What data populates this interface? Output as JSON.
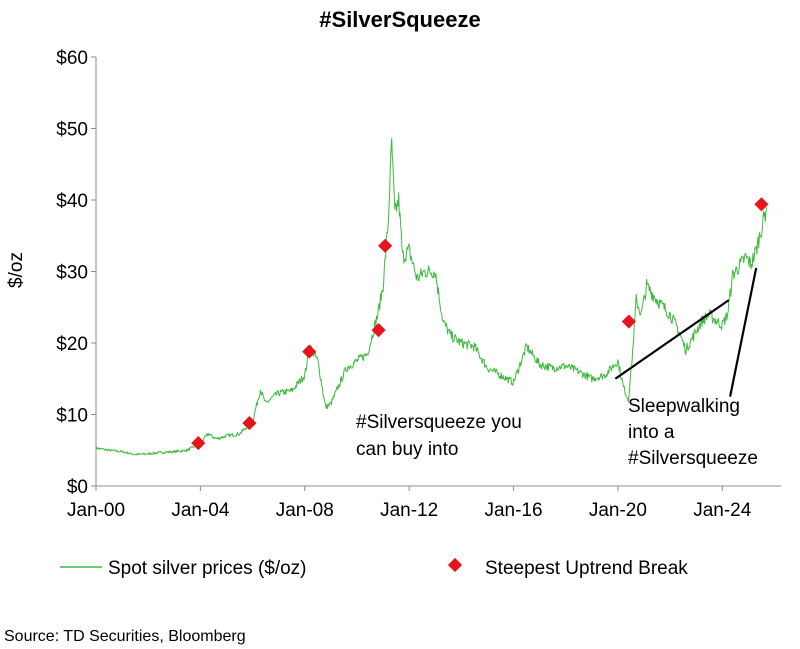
{
  "chart_data": {
    "type": "line",
    "title": "#SilverSqueeze",
    "ylabel": "$/oz",
    "xlabel": "",
    "source": "Source: TD Securities, Bloomberg",
    "ylim": [
      0,
      60
    ],
    "yticks": [
      0,
      10,
      20,
      30,
      40,
      50,
      60
    ],
    "ytick_labels": [
      "$0",
      "$10",
      "$20",
      "$30",
      "$40",
      "$50",
      "$60"
    ],
    "xlim": [
      2000.0,
      2026.25
    ],
    "xticks": [
      2000,
      2004,
      2008,
      2012,
      2016,
      2020,
      2024
    ],
    "xtick_labels": [
      "Jan-00",
      "Jan-04",
      "Jan-08",
      "Jan-12",
      "Jan-16",
      "Jan-20",
      "Jan-24"
    ],
    "grid": false,
    "legend_position": "bottom",
    "series": [
      {
        "name": "Spot silver prices ($/oz)",
        "color": "#3dba3d",
        "x": [
          2000.0,
          2000.5,
          2001.0,
          2001.5,
          2002.0,
          2002.5,
          2003.0,
          2003.5,
          2004.0,
          2004.3,
          2004.6,
          2005.0,
          2005.5,
          2006.0,
          2006.3,
          2006.5,
          2006.8,
          2007.0,
          2007.5,
          2008.0,
          2008.2,
          2008.5,
          2008.8,
          2009.0,
          2009.3,
          2009.6,
          2010.0,
          2010.4,
          2010.8,
          2011.0,
          2011.2,
          2011.33,
          2011.45,
          2011.6,
          2011.75,
          2012.0,
          2012.3,
          2012.6,
          2013.0,
          2013.3,
          2013.6,
          2014.0,
          2014.5,
          2015.0,
          2015.5,
          2016.0,
          2016.5,
          2017.0,
          2017.5,
          2018.0,
          2018.5,
          2019.0,
          2019.5,
          2020.0,
          2020.2,
          2020.4,
          2020.55,
          2020.7,
          2020.9,
          2021.1,
          2021.5,
          2022.0,
          2022.3,
          2022.6,
          2022.9,
          2023.2,
          2023.5,
          2023.8,
          2024.0,
          2024.2,
          2024.4,
          2024.6,
          2024.9,
          2025.1,
          2025.3,
          2025.5,
          2025.7
        ],
        "values": [
          5.3,
          5.0,
          4.8,
          4.4,
          4.5,
          4.7,
          4.8,
          5.0,
          6.0,
          7.3,
          6.6,
          7.0,
          7.3,
          9.0,
          13.5,
          11.5,
          12.5,
          13.0,
          13.3,
          15.5,
          19.5,
          17.5,
          11.0,
          11.5,
          14.0,
          16.5,
          17.5,
          18.5,
          24.0,
          28.0,
          37.0,
          48.0,
          38.0,
          40.0,
          32.0,
          33.0,
          29.0,
          30.0,
          30.0,
          23.0,
          21.0,
          20.0,
          19.5,
          16.5,
          15.5,
          14.5,
          19.5,
          17.0,
          16.5,
          16.8,
          16.0,
          15.0,
          15.5,
          17.5,
          14.0,
          12.0,
          18.0,
          26.0,
          24.0,
          28.0,
          26.0,
          24.0,
          22.0,
          19.0,
          21.0,
          23.0,
          24.0,
          23.0,
          22.5,
          24.0,
          29.5,
          30.5,
          32.0,
          31.0,
          33.0,
          36.0,
          39.0
        ]
      },
      {
        "name": "Steepest Uptrend Break",
        "color": "#e8141c",
        "marker": "diamond",
        "x": [
          2003.92,
          2005.88,
          2008.17,
          2010.83,
          2011.08,
          2020.42,
          2025.5
        ],
        "values": [
          6.0,
          8.8,
          18.8,
          21.8,
          33.6,
          23.0,
          39.4
        ]
      }
    ],
    "annotations": [
      {
        "lines": [
          "#Silversqueeze you",
          "can buy into"
        ],
        "arrow_from": [
          2019.9,
          15.0
        ],
        "arrow_to": [
          2024.25,
          26.0
        ]
      },
      {
        "lines": [
          "Sleepwalking",
          "into a",
          "#Silversqueeze"
        ],
        "arrow_from": [
          2024.3,
          12.5
        ],
        "arrow_to": [
          2025.3,
          30.5
        ]
      }
    ]
  }
}
